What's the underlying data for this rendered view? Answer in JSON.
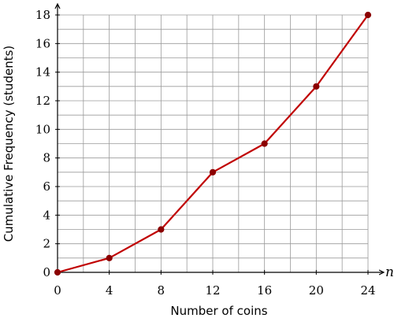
{
  "chart_data": {
    "type": "line",
    "xlabel": "Number of coins",
    "ylabel": "Cumulative Frequency (students)",
    "x_axis_variable": "n",
    "xlim": [
      0,
      24
    ],
    "ylim": [
      0,
      18
    ],
    "x_ticks": [
      0,
      4,
      8,
      12,
      16,
      20,
      24
    ],
    "y_ticks": [
      0,
      2,
      4,
      6,
      8,
      10,
      12,
      14,
      16,
      18
    ],
    "grid": true,
    "grid_minor_x_step": 2,
    "grid_minor_y_step": 1,
    "series": [
      {
        "points": [
          {
            "x": 0,
            "y": 0
          },
          {
            "x": 4,
            "y": 1
          },
          {
            "x": 8,
            "y": 3
          },
          {
            "x": 12,
            "y": 7
          },
          {
            "x": 16,
            "y": 9
          },
          {
            "x": 20,
            "y": 13
          },
          {
            "x": 24,
            "y": 18
          }
        ]
      }
    ],
    "colors": {
      "line": "#c00000",
      "marker": "#8b0000",
      "grid": "#9a9a9a",
      "axis": "#000000"
    }
  }
}
